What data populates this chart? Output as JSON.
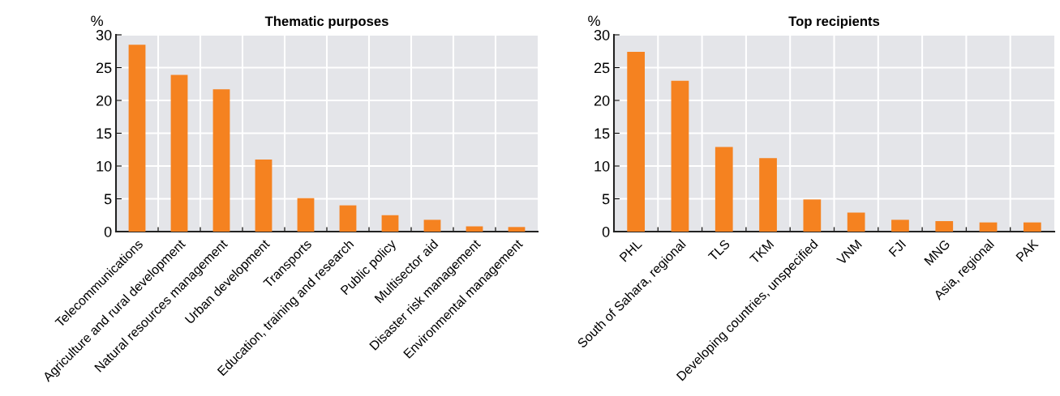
{
  "chart_data": [
    {
      "type": "bar",
      "title": "Thematic purposes",
      "ylabel": "%",
      "categories": [
        "Telecommunications",
        "Agriculture and rural development",
        "Natural resources management",
        "Urban development",
        "Transports",
        "Education, training and research",
        "Public policy",
        "Multisector aid",
        "Disaster risk management",
        "Environmental management"
      ],
      "values": [
        28.5,
        23.9,
        21.7,
        11.0,
        5.1,
        4.0,
        2.5,
        1.8,
        0.8,
        0.7
      ],
      "color": "#f58220",
      "ylim": [
        0,
        30
      ],
      "yticks": [
        0,
        5,
        10,
        15,
        20,
        25,
        30
      ],
      "grid": true
    },
    {
      "type": "bar",
      "title": "Top recipients",
      "ylabel": "%",
      "categories": [
        "PHL",
        "South of Sahara, regional",
        "TLS",
        "TKM",
        "Developing countries, unspecified",
        "VNM",
        "FJI",
        "MNG",
        "Asia, regional",
        "PAK"
      ],
      "values": [
        27.4,
        23.0,
        12.9,
        11.2,
        4.9,
        2.9,
        1.8,
        1.6,
        1.4,
        1.4
      ],
      "color": "#f58220",
      "ylim": [
        0,
        30
      ],
      "yticks": [
        0,
        5,
        10,
        15,
        20,
        25,
        30
      ],
      "grid": true
    }
  ]
}
